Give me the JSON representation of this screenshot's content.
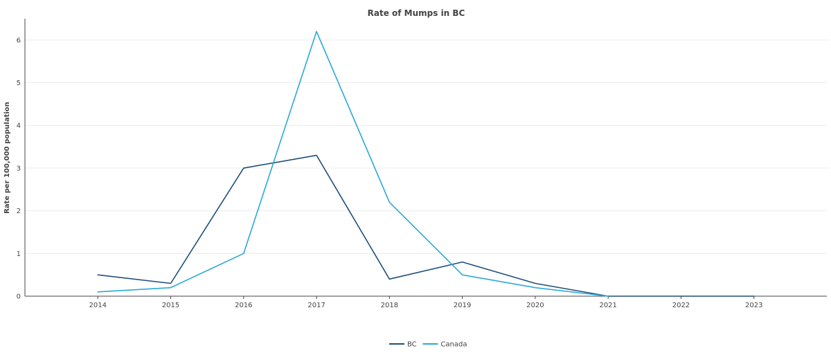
{
  "chart_data": {
    "type": "line",
    "title": "Rate of Mumps in BC",
    "xlabel": "",
    "ylabel": "Rate per 100,000 population",
    "x": [
      2014,
      2015,
      2016,
      2017,
      2018,
      2019,
      2020,
      2021,
      2022,
      2023
    ],
    "xlim": [
      2013,
      2024
    ],
    "ylim": [
      0,
      6.5
    ],
    "yticks": [
      0,
      1,
      2,
      3,
      4,
      5,
      6
    ],
    "grid": true,
    "legend_position": "bottom",
    "series": [
      {
        "name": "BC",
        "color": "#1f4e79",
        "values": [
          0.5,
          0.3,
          3.0,
          3.3,
          0.4,
          0.8,
          0.3,
          0.0,
          0.0,
          0.0
        ]
      },
      {
        "name": "Canada",
        "color": "#29a8d8",
        "values": [
          0.1,
          0.2,
          1.0,
          6.2,
          2.2,
          0.5,
          0.2,
          0.0,
          null,
          null
        ]
      }
    ]
  }
}
